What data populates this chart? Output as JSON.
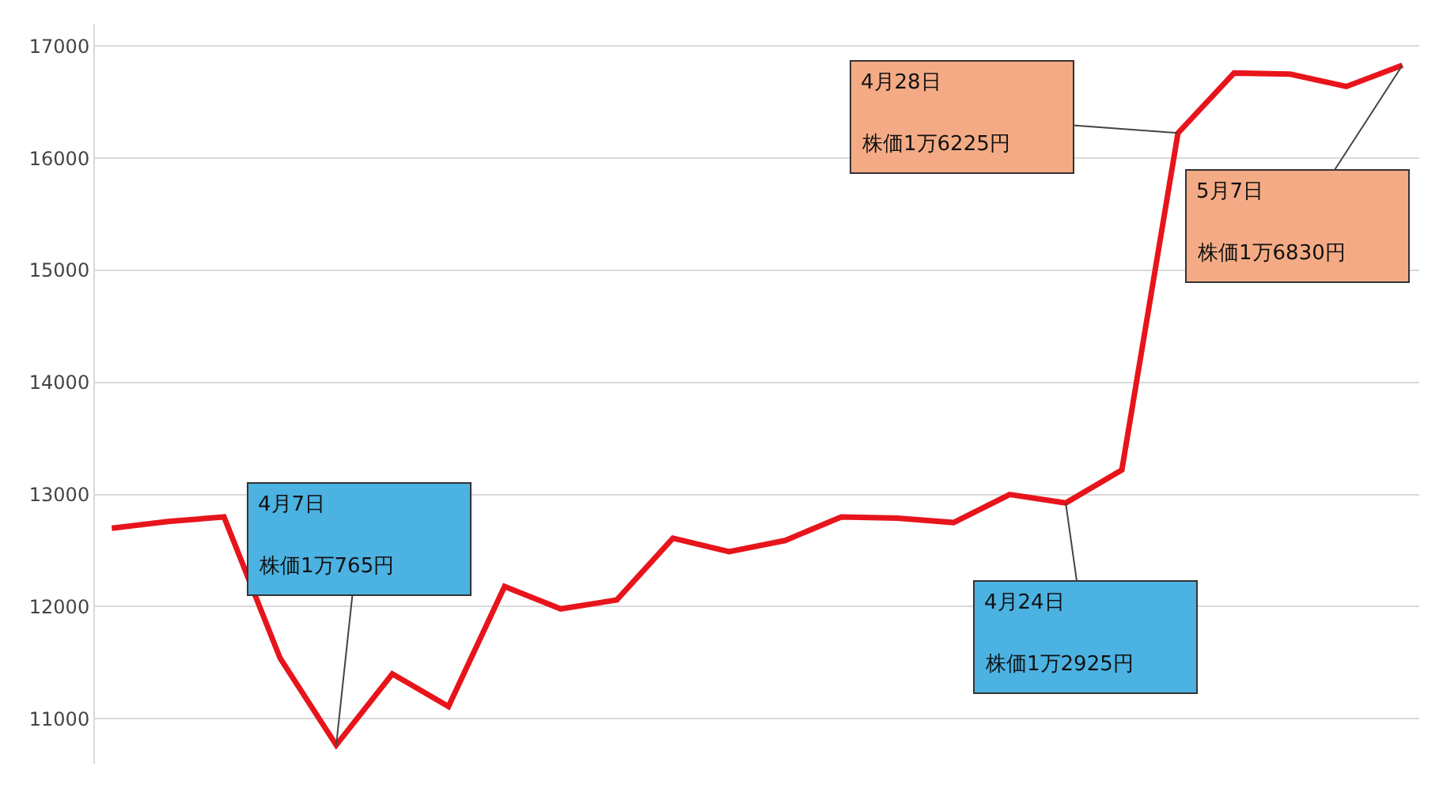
{
  "chart_data": {
    "type": "line",
    "categories": [
      null,
      null,
      null,
      null,
      null,
      null,
      null,
      null,
      null,
      null,
      null,
      null,
      null,
      null,
      null,
      null,
      null,
      null,
      null,
      null,
      null,
      null,
      null,
      null
    ],
    "series": [
      {
        "color": "#e8141c",
        "values": [
          12700,
          12760,
          12800,
          11540,
          10765,
          11400,
          11110,
          12180,
          11980,
          12060,
          12610,
          12490,
          12590,
          12800,
          12790,
          12750,
          13000,
          12925,
          13220,
          16225,
          16760,
          16750,
          16640,
          16830
        ]
      }
    ],
    "ylim": [
      10600,
      17200
    ],
    "yticks": [
      11000,
      12000,
      13000,
      14000,
      15000,
      16000,
      17000
    ],
    "grid": "y",
    "legend": false,
    "tick_labels": "y",
    "annotations": [
      "4月7日",
      "株価1万765円",
      "4月24日",
      "株価1万2925円",
      "4月28日",
      "株価1万6225円",
      "5月7日",
      "株価1万6830円"
    ]
  }
}
